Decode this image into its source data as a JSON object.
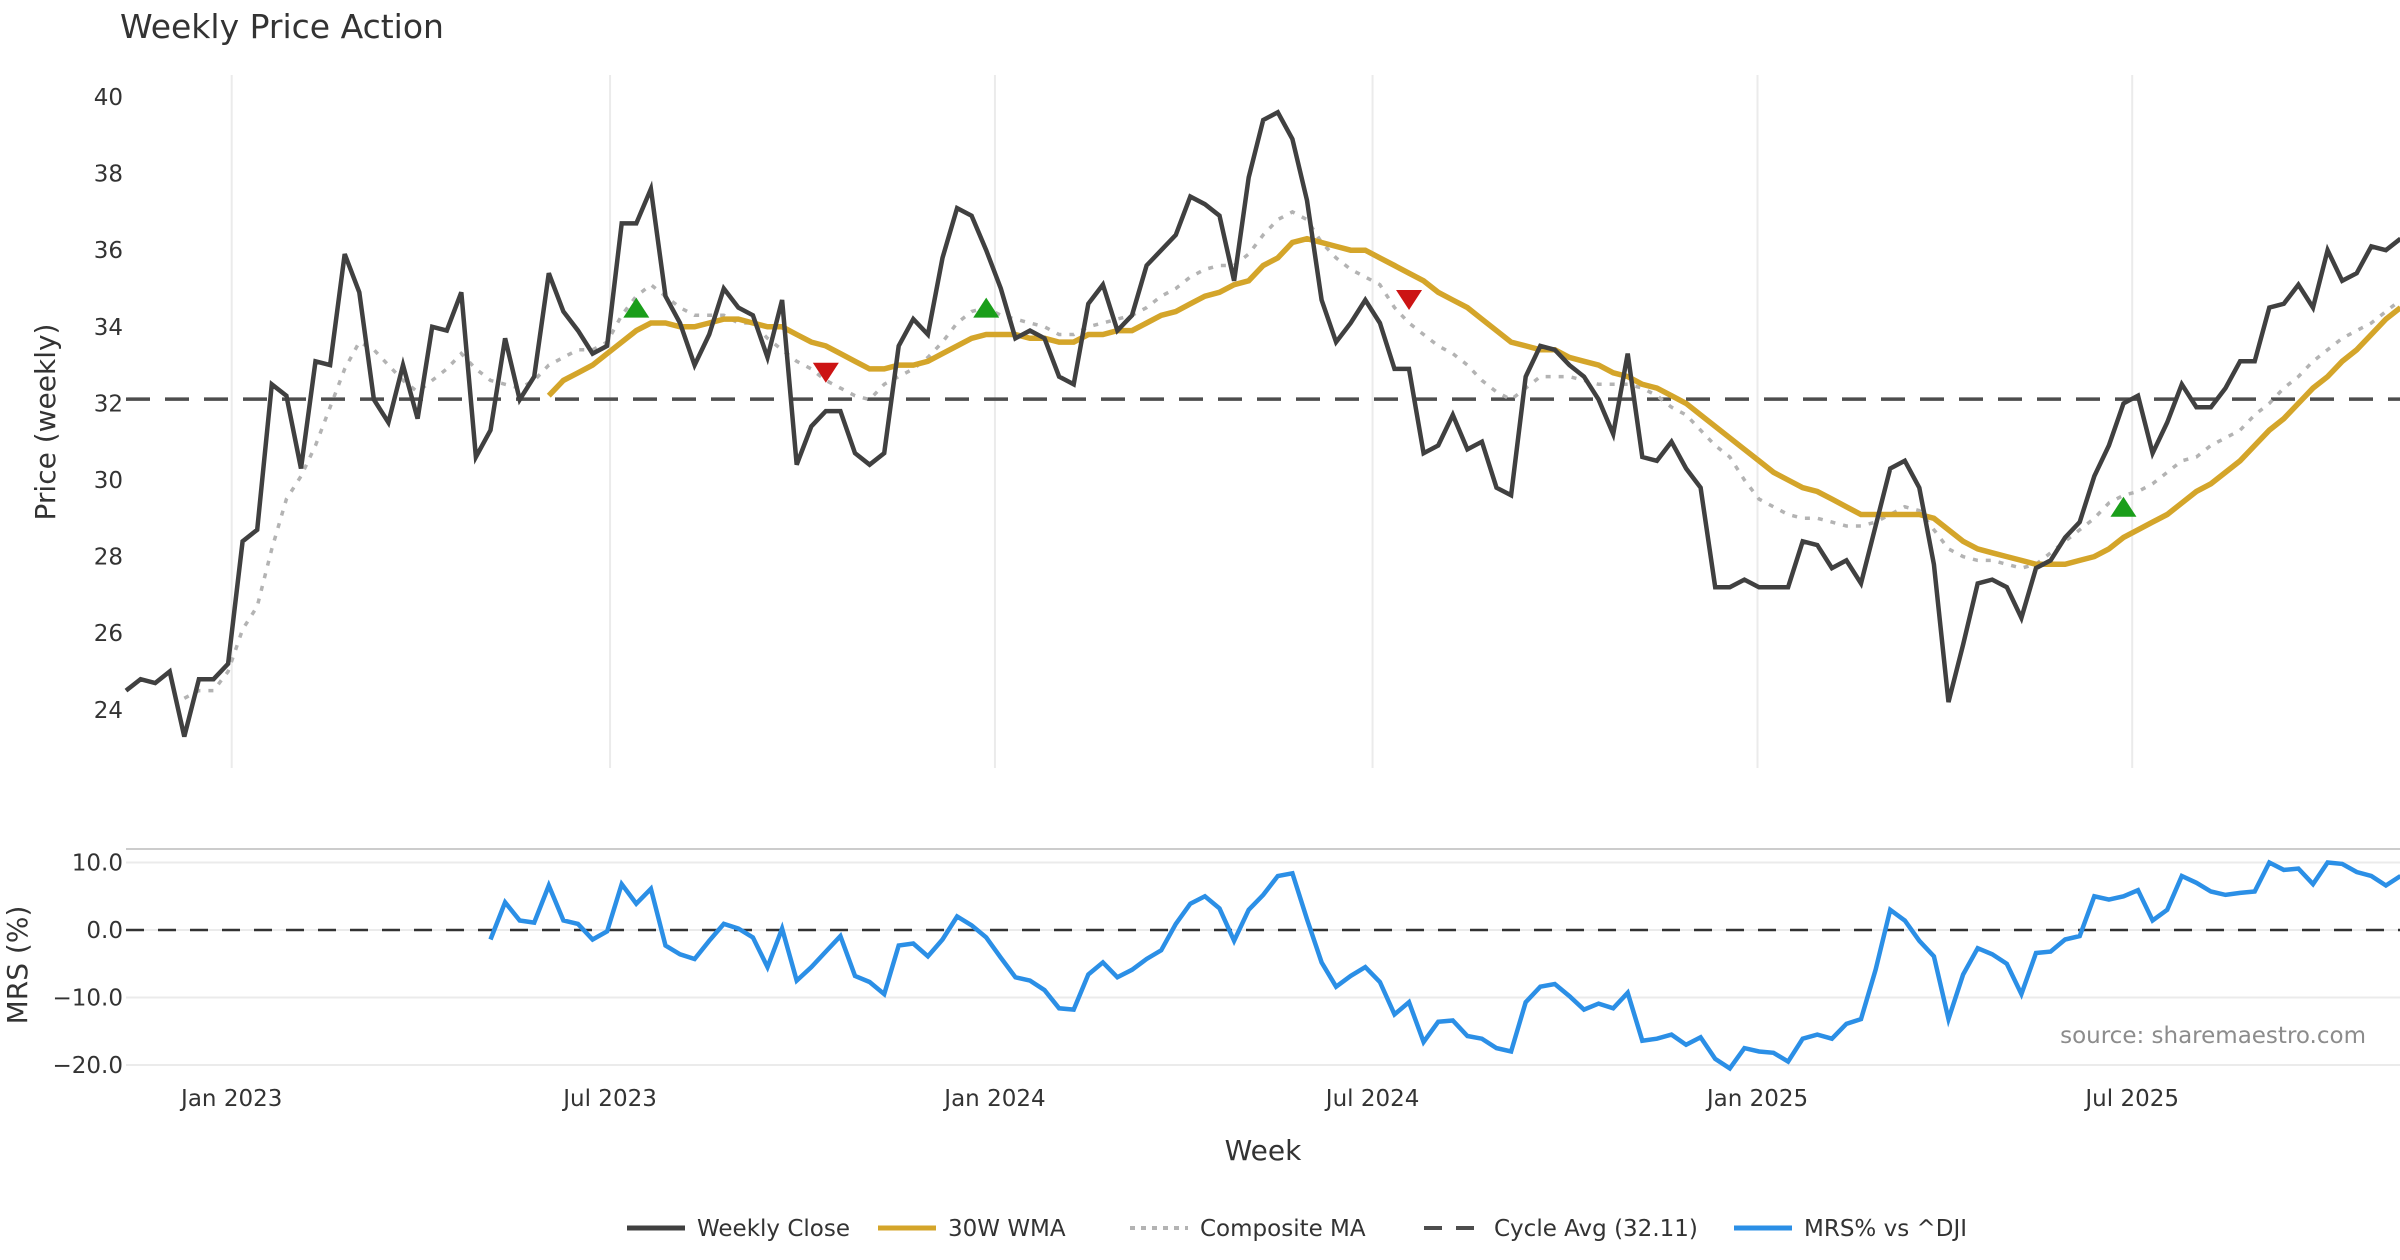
{
  "chart_data": [
    {
      "type": "line",
      "title": "Weekly Price Action",
      "xlabel": "Week",
      "ylabel": "Price (weekly)",
      "ylim": [
        22.5,
        40.6
      ],
      "yticks": [
        "24",
        "26",
        "28",
        "30",
        "32",
        "34",
        "36",
        "38",
        "40"
      ],
      "ytick_values": [
        24,
        26,
        28,
        30,
        32,
        34,
        36,
        38,
        40
      ],
      "grid": "vertical",
      "x_week_count": 157,
      "xticks": [
        {
          "label": "Jan 2023",
          "week": 7.25
        },
        {
          "label": "Jul 2023",
          "week": 33.2
        },
        {
          "label": "Jan 2024",
          "week": 59.6
        },
        {
          "label": "Jul 2024",
          "week": 85.5
        },
        {
          "label": "Jan 2025",
          "week": 111.9
        },
        {
          "label": "Jul 2025",
          "week": 137.6
        }
      ],
      "series": [
        {
          "name": "Weekly Close",
          "color": "#404040",
          "start_week": 0,
          "values": [
            24.5,
            24.8,
            24.7,
            25.0,
            23.3,
            24.8,
            24.8,
            25.2,
            28.4,
            28.7,
            32.5,
            32.2,
            30.3,
            33.1,
            33.0,
            35.9,
            34.9,
            32.1,
            31.5,
            33.0,
            31.6,
            34.0,
            33.9,
            34.9,
            30.6,
            31.3,
            33.7,
            32.1,
            32.7,
            35.4,
            34.4,
            33.9,
            33.3,
            33.5,
            36.7,
            36.7,
            37.6,
            34.8,
            34.1,
            33.0,
            33.8,
            35.0,
            34.5,
            34.3,
            33.2,
            34.7,
            30.4,
            31.4,
            31.8,
            31.8,
            30.7,
            30.4,
            30.7,
            33.5,
            34.2,
            33.8,
            35.8,
            37.1,
            36.9,
            36.0,
            35.0,
            33.7,
            33.9,
            33.7,
            32.7,
            32.5,
            34.6,
            35.1,
            33.9,
            34.3,
            35.6,
            36.0,
            36.4,
            37.4,
            37.2,
            36.9,
            35.2,
            37.9,
            39.4,
            39.6,
            38.9,
            37.3,
            34.7,
            33.6,
            34.1,
            34.7,
            34.1,
            32.9,
            32.9,
            30.7,
            30.9,
            31.7,
            30.8,
            31.0,
            29.8,
            29.6,
            32.7,
            33.5,
            33.4,
            33.0,
            32.7,
            32.1,
            31.2,
            33.3,
            30.6,
            30.5,
            31.0,
            30.3,
            29.8,
            27.2,
            27.2,
            27.4,
            27.2,
            27.2,
            27.2,
            28.4,
            28.3,
            27.7,
            27.9,
            27.3,
            28.8,
            30.3,
            30.5,
            29.8,
            27.8,
            24.2,
            25.7,
            27.3,
            27.4,
            27.2,
            26.4,
            27.7,
            27.9,
            28.5,
            28.9,
            30.1,
            30.9,
            32.0,
            32.2,
            30.7,
            31.5,
            32.5,
            31.9,
            31.9,
            32.4,
            33.1,
            33.1,
            34.5,
            34.6,
            35.1,
            34.5,
            36.0,
            35.2,
            35.4,
            36.1,
            36.0,
            36.3
          ]
        },
        {
          "name": "30W WMA",
          "color": "#d4a52a",
          "start_week": 29,
          "values": [
            32.2,
            32.6,
            32.8,
            33.0,
            33.3,
            33.6,
            33.9,
            34.1,
            34.1,
            34.0,
            34.0,
            34.1,
            34.2,
            34.2,
            34.1,
            34.0,
            34.0,
            33.8,
            33.6,
            33.5,
            33.3,
            33.1,
            32.9,
            32.9,
            33.0,
            33.0,
            33.1,
            33.3,
            33.5,
            33.7,
            33.8,
            33.8,
            33.8,
            33.7,
            33.7,
            33.6,
            33.6,
            33.8,
            33.8,
            33.9,
            33.9,
            34.1,
            34.3,
            34.4,
            34.6,
            34.8,
            34.9,
            35.1,
            35.2,
            35.6,
            35.8,
            36.2,
            36.3,
            36.2,
            36.1,
            36.0,
            36.0,
            35.8,
            35.6,
            35.4,
            35.2,
            34.9,
            34.7,
            34.5,
            34.2,
            33.9,
            33.6,
            33.5,
            33.4,
            33.4,
            33.2,
            33.1,
            33.0,
            32.8,
            32.7,
            32.5,
            32.4,
            32.2,
            32.0,
            31.7,
            31.4,
            31.1,
            30.8,
            30.5,
            30.2,
            30.0,
            29.8,
            29.7,
            29.5,
            29.3,
            29.1,
            29.1,
            29.1,
            29.1,
            29.1,
            29.0,
            28.7,
            28.4,
            28.2,
            28.1,
            28.0,
            27.9,
            27.8,
            27.8,
            27.8,
            27.9,
            28.0,
            28.2,
            28.5,
            28.7,
            28.9,
            29.1,
            29.4,
            29.7,
            29.9,
            30.2,
            30.5,
            30.9,
            31.3,
            31.6,
            32.0,
            32.4,
            32.7,
            33.1,
            33.4,
            33.8,
            34.2,
            34.5
          ]
        },
        {
          "name": "Composite MA",
          "color": "#b3b3b3",
          "start_week": 4,
          "values": [
            24.3,
            24.5,
            24.5,
            25.0,
            26.1,
            26.7,
            28.2,
            29.5,
            30.1,
            30.9,
            31.9,
            32.9,
            33.6,
            33.4,
            33.0,
            32.6,
            32.3,
            32.6,
            32.9,
            33.3,
            32.9,
            32.6,
            32.5,
            32.4,
            32.6,
            33.0,
            33.2,
            33.4,
            33.4,
            33.6,
            34.3,
            34.8,
            35.1,
            34.8,
            34.5,
            34.3,
            34.3,
            34.3,
            34.1,
            34.1,
            33.7,
            33.4,
            33.1,
            32.9,
            32.6,
            32.4,
            32.2,
            32.1,
            32.5,
            32.7,
            32.9,
            33.2,
            33.6,
            34.1,
            34.4,
            34.5,
            34.3,
            34.2,
            34.1,
            34.0,
            33.8,
            33.8,
            34.0,
            34.1,
            34.2,
            34.3,
            34.5,
            34.8,
            35.0,
            35.3,
            35.5,
            35.6,
            35.6,
            35.9,
            36.4,
            36.8,
            37.0,
            36.8,
            36.2,
            35.8,
            35.5,
            35.3,
            35.1,
            34.5,
            34.1,
            33.8,
            33.5,
            33.3,
            33.0,
            32.6,
            32.3,
            32.1,
            32.4,
            32.7,
            32.7,
            32.7,
            32.6,
            32.5,
            32.5,
            32.5,
            32.4,
            32.2,
            31.9,
            31.7,
            31.3,
            30.9,
            30.6,
            30.0,
            29.5,
            29.3,
            29.1,
            29.0,
            29.0,
            28.9,
            28.8,
            28.8,
            28.9,
            29.1,
            29.3,
            29.2,
            28.7,
            28.2,
            28.0,
            27.9,
            27.9,
            27.8,
            27.7,
            27.8,
            28.1,
            28.4,
            28.7,
            29.0,
            29.4,
            29.6,
            29.7,
            29.9,
            30.2,
            30.5,
            30.6,
            30.9,
            31.1,
            31.3,
            31.7,
            32.0,
            32.4,
            32.7,
            33.1,
            33.4,
            33.7,
            33.9,
            34.1,
            34.4,
            34.7
          ]
        }
      ],
      "reference_line": {
        "name": "Cycle Avg (32.11)",
        "value": 32.11,
        "color": "#4d4d4d"
      },
      "signals": [
        {
          "type": "buy",
          "week": 35,
          "value": 34.5,
          "color": "#1a9e1a"
        },
        {
          "type": "sell",
          "week": 48,
          "value": 32.8,
          "color": "#cc1414"
        },
        {
          "type": "buy",
          "week": 59,
          "value": 34.5,
          "color": "#1a9e1a"
        },
        {
          "type": "sell",
          "week": 88,
          "value": 34.7,
          "color": "#cc1414"
        },
        {
          "type": "buy",
          "week": 137,
          "value": 29.3,
          "color": "#1a9e1a"
        }
      ]
    },
    {
      "type": "line",
      "title": "",
      "xlabel": "Week",
      "ylabel": "MRS (%)",
      "ylim": [
        -21.0,
        12.7
      ],
      "yticks": [
        "10.0",
        "0.0",
        "−10.0",
        "−20.0"
      ],
      "ytick_values": [
        10,
        0,
        -10,
        -20
      ],
      "grid": "horizontal",
      "series": [
        {
          "name": "MRS% vs ^DJI",
          "color": "#2b8fe6",
          "start_week": 25,
          "values": [
            -1.4,
            4.1,
            1.4,
            1.1,
            6.6,
            1.4,
            0.9,
            -1.4,
            -0.2,
            6.8,
            3.9,
            6.1,
            -2.3,
            -3.6,
            -4.3,
            -1.6,
            0.9,
            0.2,
            -1.1,
            -5.5,
            0.2,
            -7.5,
            -5.5,
            -3.2,
            -0.9,
            -6.8,
            -7.7,
            -9.5,
            -2.3,
            -2.0,
            -3.9,
            -1.4,
            2.0,
            0.7,
            -1.1,
            -4.1,
            -7.0,
            -7.5,
            -8.9,
            -11.6,
            -11.8,
            -6.6,
            -4.8,
            -7.0,
            -5.9,
            -4.3,
            -3.0,
            0.9,
            3.9,
            5.0,
            3.2,
            -1.6,
            3.0,
            5.2,
            8.0,
            8.4,
            1.6,
            -4.8,
            -8.4,
            -6.8,
            -5.5,
            -7.7,
            -12.5,
            -10.7,
            -16.6,
            -13.6,
            -13.4,
            -15.7,
            -16.1,
            -17.5,
            -18.0,
            -10.7,
            -8.4,
            -8.0,
            -9.8,
            -11.8,
            -10.9,
            -11.6,
            -9.3,
            -16.4,
            -16.1,
            -15.5,
            -17.0,
            -15.9,
            -19.1,
            -20.5,
            -17.5,
            -18.0,
            -18.2,
            -19.5,
            -16.1,
            -15.5,
            -16.1,
            -13.9,
            -13.2,
            -5.9,
            3.0,
            1.4,
            -1.6,
            -3.9,
            -13.2,
            -6.6,
            -2.7,
            -3.6,
            -5.0,
            -9.5,
            -3.4,
            -3.2,
            -1.4,
            -0.9,
            5.0,
            4.5,
            5.0,
            5.9,
            1.4,
            3.0,
            8.0,
            7.0,
            5.7,
            5.2,
            5.5,
            5.7,
            10.0,
            8.9,
            9.1,
            6.8,
            10.0,
            9.8,
            8.6,
            8.0,
            6.6,
            8.0
          ]
        }
      ],
      "reference_line": {
        "value": 0,
        "color": "#333333"
      },
      "annotation": "source: sharemaestro.com"
    }
  ],
  "legend": {
    "placement": "bottom-center",
    "items": [
      {
        "label": "Weekly Close",
        "style": "solid",
        "color": "#404040"
      },
      {
        "label": "30W WMA",
        "style": "solid",
        "color": "#d4a52a"
      },
      {
        "label": "Composite MA",
        "style": "dotted",
        "color": "#b3b3b3"
      },
      {
        "label": "Cycle Avg (32.11)",
        "style": "dashed",
        "color": "#4d4d4d"
      },
      {
        "label": "MRS% vs ^DJI",
        "style": "solid",
        "color": "#2b8fe6"
      }
    ]
  }
}
